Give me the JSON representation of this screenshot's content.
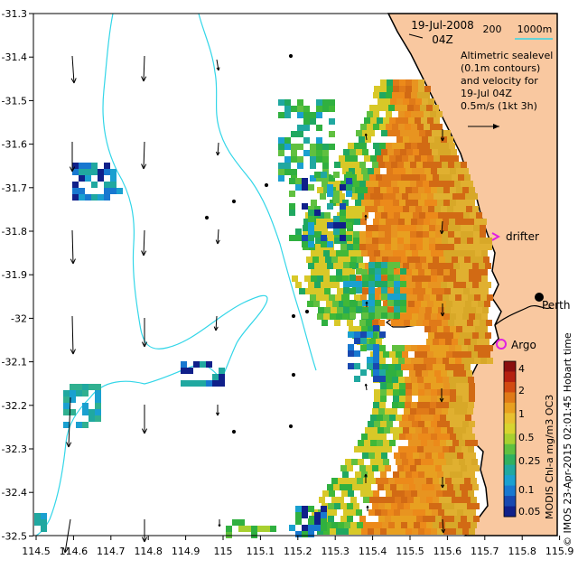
{
  "header": {
    "date": "19-Jul-2008",
    "time": "04Z"
  },
  "depth_scale": {
    "label_200": "200",
    "label_1000": "1000m"
  },
  "legend_note": {
    "line1": "Altimetric sealevel",
    "line2": "(0.1m contours)",
    "line3": "and velocity for",
    "line4": "19-Jul 04Z",
    "line5": "0.5m/s (1kt 3h)"
  },
  "places": {
    "perth": "Perth",
    "argo": "Argo",
    "drifter": "drifter"
  },
  "colorbar": {
    "title": "MODIS Chl-a mg/m3 OC3",
    "ticks": [
      "4",
      "2",
      "1",
      "0.5",
      "0.25",
      "0.1",
      "0.05"
    ]
  },
  "credit": "© IMOS 23-Apr-2015 02:01:45 Hobart time",
  "axes": {
    "x_ticks": [
      "114.5",
      "114.6",
      "114.7",
      "114.8",
      "114.9",
      "115",
      "115.1",
      "115.2",
      "115.3",
      "115.4",
      "115.5",
      "115.6",
      "115.7",
      "115.8",
      "115.9"
    ],
    "y_ticks": [
      "-31.3",
      "-31.4",
      "-31.5",
      "-31.6",
      "-31.7",
      "-31.8",
      "-31.9",
      "-32",
      "-32.1",
      "-32.2",
      "-32.3",
      "-32.4",
      "-32.5"
    ]
  },
  "colors": {
    "land": "#f9c8a0",
    "isobath": "#33d6e8",
    "argo": "#e020e0",
    "drifter": "#e020e0",
    "chl_low": "#10208a",
    "chl_mid": "#30b040",
    "chl_high": "#e8a020"
  }
}
